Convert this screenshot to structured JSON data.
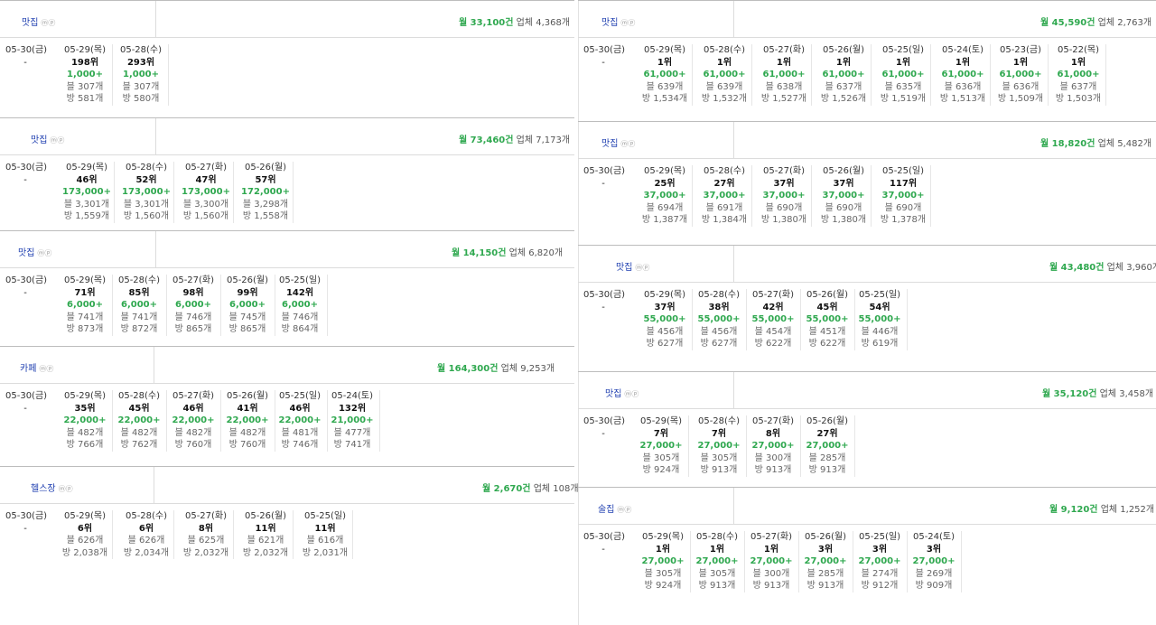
{
  "panels": [
    {
      "keyword": "맛집",
      "sub": "ⓜⓟ",
      "volume": "월 33,100건",
      "biz": "업체 4,368개",
      "today": {
        "date": "05-30(금)",
        "value": "-"
      },
      "days": [
        {
          "date": "05-29(목)",
          "rank": "198위",
          "views": "1,000+",
          "blog": "블 307개",
          "bang": "방 581개"
        },
        {
          "date": "05-28(수)",
          "rank": "293위",
          "views": "1,000+",
          "blog": "블 307개",
          "bang": "방 580개"
        }
      ]
    },
    {
      "keyword": "맛집",
      "sub": "ⓜⓟ",
      "volume": "월 73,460건",
      "biz": "업체 7,173개",
      "today": {
        "date": "05-30(금)",
        "value": "-"
      },
      "days": [
        {
          "date": "05-29(목)",
          "rank": "46위",
          "views": "173,000+",
          "blog": "블 3,301개",
          "bang": "방 1,559개"
        },
        {
          "date": "05-28(수)",
          "rank": "52위",
          "views": "173,000+",
          "blog": "블 3,301개",
          "bang": "방 1,560개"
        },
        {
          "date": "05-27(화)",
          "rank": "47위",
          "views": "173,000+",
          "blog": "블 3,300개",
          "bang": "방 1,560개"
        },
        {
          "date": "05-26(월)",
          "rank": "57위",
          "views": "172,000+",
          "blog": "블 3,298개",
          "bang": "방 1,558개"
        }
      ]
    },
    {
      "keyword": "맛집",
      "sub": "ⓜⓟ",
      "volume": "월 14,150건",
      "biz": "업체 6,820개",
      "today": {
        "date": "05-30(금)",
        "value": "-"
      },
      "days": [
        {
          "date": "05-29(목)",
          "rank": "71위",
          "views": "6,000+",
          "blog": "블 741개",
          "bang": "방 873개"
        },
        {
          "date": "05-28(수)",
          "rank": "85위",
          "views": "6,000+",
          "blog": "블 741개",
          "bang": "방 872개"
        },
        {
          "date": "05-27(화)",
          "rank": "98위",
          "views": "6,000+",
          "blog": "블 746개",
          "bang": "방 865개"
        },
        {
          "date": "05-26(월)",
          "rank": "99위",
          "views": "6,000+",
          "blog": "블 745개",
          "bang": "방 865개"
        },
        {
          "date": "05-25(일)",
          "rank": "142위",
          "views": "6,000+",
          "blog": "블 746개",
          "bang": "방 864개"
        }
      ]
    },
    {
      "keyword": "카페",
      "sub": "ⓜⓟ",
      "volume": "월 164,300건",
      "biz": "업체 9,253개",
      "today": {
        "date": "05-30(금)",
        "value": "-"
      },
      "days": [
        {
          "date": "05-29(목)",
          "rank": "35위",
          "views": "22,000+",
          "blog": "블 482개",
          "bang": "방 766개"
        },
        {
          "date": "05-28(수)",
          "rank": "45위",
          "views": "22,000+",
          "blog": "블 482개",
          "bang": "방 762개"
        },
        {
          "date": "05-27(화)",
          "rank": "46위",
          "views": "22,000+",
          "blog": "블 482개",
          "bang": "방 760개"
        },
        {
          "date": "05-26(월)",
          "rank": "41위",
          "views": "22,000+",
          "blog": "블 482개",
          "bang": "방 760개"
        },
        {
          "date": "05-25(일)",
          "rank": "46위",
          "views": "22,000+",
          "blog": "블 481개",
          "bang": "방 746개"
        },
        {
          "date": "05-24(토)",
          "rank": "132위",
          "views": "21,000+",
          "blog": "블 477개",
          "bang": "방 741개"
        }
      ]
    },
    {
      "keyword": "헬스장",
      "sub": "ⓜⓟ",
      "volume": "월 2,670건",
      "biz": "업체 108개",
      "today": {
        "date": "05-30(금)",
        "value": "-"
      },
      "days": [
        {
          "date": "05-29(목)",
          "rank": "6위",
          "views": "",
          "blog": "블 626개",
          "bang": "방 2,038개"
        },
        {
          "date": "05-28(수)",
          "rank": "6위",
          "views": "",
          "blog": "블 626개",
          "bang": "방 2,034개"
        },
        {
          "date": "05-27(화)",
          "rank": "8위",
          "views": "",
          "blog": "블 625개",
          "bang": "방 2,032개"
        },
        {
          "date": "05-26(월)",
          "rank": "11위",
          "views": "",
          "blog": "블 621개",
          "bang": "방 2,032개"
        },
        {
          "date": "05-25(일)",
          "rank": "11위",
          "views": "",
          "blog": "블 616개",
          "bang": "방 2,031개"
        }
      ]
    },
    {
      "keyword": "맛집",
      "sub": "ⓜⓟ",
      "volume": "월 45,590건",
      "biz": "업체 2,763개",
      "today": {
        "date": "05-30(금)",
        "value": "-"
      },
      "days": [
        {
          "date": "05-29(목)",
          "rank": "1위",
          "views": "61,000+",
          "blog": "블 639개",
          "bang": "방 1,534개"
        },
        {
          "date": "05-28(수)",
          "rank": "1위",
          "views": "61,000+",
          "blog": "블 639개",
          "bang": "방 1,532개"
        },
        {
          "date": "05-27(화)",
          "rank": "1위",
          "views": "61,000+",
          "blog": "블 638개",
          "bang": "방 1,527개"
        },
        {
          "date": "05-26(월)",
          "rank": "1위",
          "views": "61,000+",
          "blog": "블 637개",
          "bang": "방 1,526개"
        },
        {
          "date": "05-25(일)",
          "rank": "1위",
          "views": "61,000+",
          "blog": "블 635개",
          "bang": "방 1,519개"
        },
        {
          "date": "05-24(토)",
          "rank": "1위",
          "views": "61,000+",
          "blog": "블 636개",
          "bang": "방 1,513개"
        },
        {
          "date": "05-23(금)",
          "rank": "1위",
          "views": "61,000+",
          "blog": "블 636개",
          "bang": "방 1,509개"
        },
        {
          "date": "05-22(목)",
          "rank": "1위",
          "views": "61,000+",
          "blog": "블 637개",
          "bang": "방 1,503개"
        }
      ]
    },
    {
      "keyword": "맛집",
      "sub": "ⓜⓟ",
      "volume": "월 18,820건",
      "biz": "업체 5,482개",
      "today": {
        "date": "05-30(금)",
        "value": "-"
      },
      "days": [
        {
          "date": "05-29(목)",
          "rank": "25위",
          "views": "37,000+",
          "blog": "블 694개",
          "bang": "방 1,387개"
        },
        {
          "date": "05-28(수)",
          "rank": "27위",
          "views": "37,000+",
          "blog": "블 691개",
          "bang": "방 1,384개"
        },
        {
          "date": "05-27(화)",
          "rank": "37위",
          "views": "37,000+",
          "blog": "블 690개",
          "bang": "방 1,380개"
        },
        {
          "date": "05-26(월)",
          "rank": "37위",
          "views": "37,000+",
          "blog": "블 690개",
          "bang": "방 1,380개"
        },
        {
          "date": "05-25(일)",
          "rank": "117위",
          "views": "37,000+",
          "blog": "블 690개",
          "bang": "방 1,378개"
        }
      ]
    },
    {
      "keyword": "맛집",
      "sub": "ⓜⓟ",
      "volume": "월 43,480건",
      "biz": "업체 3,960개",
      "today": {
        "date": "05-30(금)",
        "value": "-"
      },
      "days": [
        {
          "date": "05-29(목)",
          "rank": "37위",
          "views": "55,000+",
          "blog": "블 456개",
          "bang": "방 627개"
        },
        {
          "date": "05-28(수)",
          "rank": "38위",
          "views": "55,000+",
          "blog": "블 456개",
          "bang": "방 627개"
        },
        {
          "date": "05-27(화)",
          "rank": "42위",
          "views": "55,000+",
          "blog": "블 454개",
          "bang": "방 622개"
        },
        {
          "date": "05-26(월)",
          "rank": "45위",
          "views": "55,000+",
          "blog": "블 451개",
          "bang": "방 622개"
        },
        {
          "date": "05-25(일)",
          "rank": "54위",
          "views": "55,000+",
          "blog": "블 446개",
          "bang": "방 619개"
        }
      ]
    },
    {
      "keyword": "맛집",
      "sub": "ⓜⓟ",
      "volume": "월 35,120건",
      "biz": "업체 3,458개",
      "today": {
        "date": "05-30(금)",
        "value": "-"
      },
      "days": [
        {
          "date": "05-29(목)",
          "rank": "7위",
          "views": "27,000+",
          "blog": "블 305개",
          "bang": "방 924개"
        },
        {
          "date": "05-28(수)",
          "rank": "7위",
          "views": "27,000+",
          "blog": "블 305개",
          "bang": "방 913개"
        },
        {
          "date": "05-27(화)",
          "rank": "8위",
          "views": "27,000+",
          "blog": "블 300개",
          "bang": "방 913개"
        },
        {
          "date": "05-26(월)",
          "rank": "27위",
          "views": "27,000+",
          "blog": "블 285개",
          "bang": "방 913개"
        }
      ]
    },
    {
      "keyword": "술집",
      "sub": "ⓜⓟ",
      "volume": "월 9,120건",
      "biz": "업체 1,252개",
      "today": {
        "date": "05-30(금)",
        "value": "-"
      },
      "days": [
        {
          "date": "05-29(목)",
          "rank": "1위",
          "views": "27,000+",
          "blog": "블 305개",
          "bang": "방 924개"
        },
        {
          "date": "05-28(수)",
          "rank": "1위",
          "views": "27,000+",
          "blog": "블 305개",
          "bang": "방 913개"
        },
        {
          "date": "05-27(화)",
          "rank": "1위",
          "views": "27,000+",
          "blog": "블 300개",
          "bang": "방 913개"
        },
        {
          "date": "05-26(월)",
          "rank": "3위",
          "views": "27,000+",
          "blog": "블 285개",
          "bang": "방 913개"
        },
        {
          "date": "05-25(일)",
          "rank": "3위",
          "views": "27,000+",
          "blog": "블 274개",
          "bang": "방 912개"
        },
        {
          "date": "05-24(토)",
          "rank": "3위",
          "views": "27,000+",
          "blog": "블 269개",
          "bang": "방 909개"
        }
      ]
    }
  ]
}
